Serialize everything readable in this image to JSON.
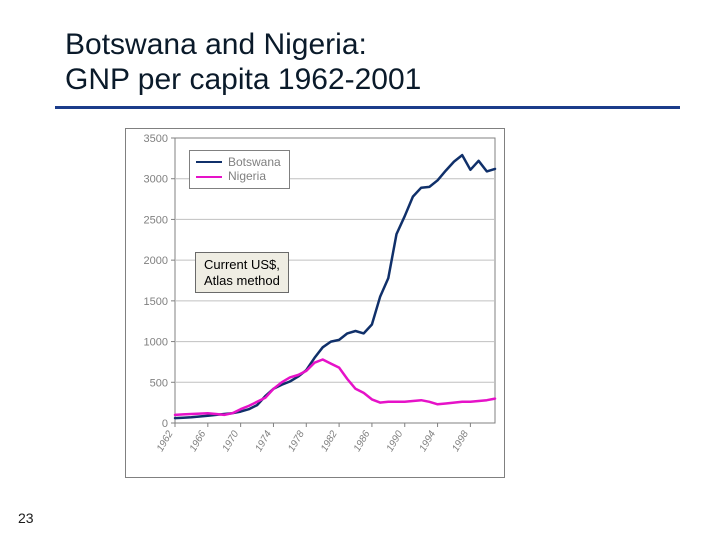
{
  "page_number": "23",
  "title_line1": "Botswana and Nigeria:",
  "title_line2": "GNP per capita 1962-2001",
  "title_color": "#0a1a2a",
  "title_fontsize": 30,
  "underline_color": "#1b3c8a",
  "annotation_line1": "Current US$,",
  "annotation_line2": "Atlas method",
  "annotation_bg": "#efede3",
  "annotation_border": "#6a6a6a",
  "chart": {
    "type": "line",
    "background_color": "#ffffff",
    "plot_bg": "#ffffff",
    "frame_color": "#808080",
    "grid_color": "#c0c0c0",
    "axis_tick_color": "#808080",
    "axis_label_color": "#808080",
    "axis_label_fontsize": 11,
    "x_label_fontsize": 10,
    "x_label_rotation": -60,
    "ylim": [
      0,
      3500
    ],
    "ytick_step": 500,
    "yticks": [
      0,
      500,
      1000,
      1500,
      2000,
      2500,
      3000,
      3500
    ],
    "xlim": [
      1962,
      2001
    ],
    "xticks": [
      1962,
      1966,
      1970,
      1974,
      1978,
      1982,
      1986,
      1990,
      1994,
      1998
    ],
    "legend": {
      "bg": "#ffffff",
      "border": "#808080",
      "fontsize": 12,
      "label_color": "#808080",
      "items": [
        {
          "label": "Botswana",
          "color": "#10306a",
          "width": 2.5
        },
        {
          "label": "Nigeria",
          "color": "#e612c8",
          "width": 2.5
        }
      ]
    },
    "series": [
      {
        "name": "Botswana",
        "color": "#10306a",
        "width": 2.5,
        "points": [
          [
            1962,
            60
          ],
          [
            1963,
            65
          ],
          [
            1964,
            70
          ],
          [
            1965,
            80
          ],
          [
            1966,
            90
          ],
          [
            1967,
            100
          ],
          [
            1968,
            110
          ],
          [
            1969,
            120
          ],
          [
            1970,
            140
          ],
          [
            1971,
            170
          ],
          [
            1972,
            220
          ],
          [
            1973,
            330
          ],
          [
            1974,
            420
          ],
          [
            1975,
            470
          ],
          [
            1976,
            510
          ],
          [
            1977,
            570
          ],
          [
            1978,
            650
          ],
          [
            1979,
            800
          ],
          [
            1980,
            930
          ],
          [
            1981,
            1000
          ],
          [
            1982,
            1020
          ],
          [
            1983,
            1100
          ],
          [
            1984,
            1130
          ],
          [
            1985,
            1100
          ],
          [
            1986,
            1210
          ],
          [
            1987,
            1550
          ],
          [
            1988,
            1780
          ],
          [
            1989,
            2320
          ],
          [
            1990,
            2540
          ],
          [
            1991,
            2780
          ],
          [
            1992,
            2890
          ],
          [
            1993,
            2900
          ],
          [
            1994,
            2980
          ],
          [
            1995,
            3100
          ],
          [
            1996,
            3210
          ],
          [
            1997,
            3290
          ],
          [
            1998,
            3110
          ],
          [
            1999,
            3220
          ],
          [
            2000,
            3090
          ],
          [
            2001,
            3120
          ]
        ]
      },
      {
        "name": "Nigeria",
        "color": "#e612c8",
        "width": 2.5,
        "points": [
          [
            1962,
            100
          ],
          [
            1963,
            105
          ],
          [
            1964,
            110
          ],
          [
            1965,
            115
          ],
          [
            1966,
            120
          ],
          [
            1967,
            110
          ],
          [
            1968,
            100
          ],
          [
            1969,
            120
          ],
          [
            1970,
            170
          ],
          [
            1971,
            210
          ],
          [
            1972,
            260
          ],
          [
            1973,
            310
          ],
          [
            1974,
            420
          ],
          [
            1975,
            500
          ],
          [
            1976,
            560
          ],
          [
            1977,
            590
          ],
          [
            1978,
            640
          ],
          [
            1979,
            740
          ],
          [
            1980,
            780
          ],
          [
            1981,
            730
          ],
          [
            1982,
            680
          ],
          [
            1983,
            540
          ],
          [
            1984,
            420
          ],
          [
            1985,
            370
          ],
          [
            1986,
            290
          ],
          [
            1987,
            250
          ],
          [
            1988,
            260
          ],
          [
            1989,
            260
          ],
          [
            1990,
            260
          ],
          [
            1991,
            270
          ],
          [
            1992,
            280
          ],
          [
            1993,
            260
          ],
          [
            1994,
            230
          ],
          [
            1995,
            240
          ],
          [
            1996,
            250
          ],
          [
            1997,
            260
          ],
          [
            1998,
            260
          ],
          [
            1999,
            270
          ],
          [
            2000,
            280
          ],
          [
            2001,
            300
          ]
        ]
      }
    ]
  }
}
